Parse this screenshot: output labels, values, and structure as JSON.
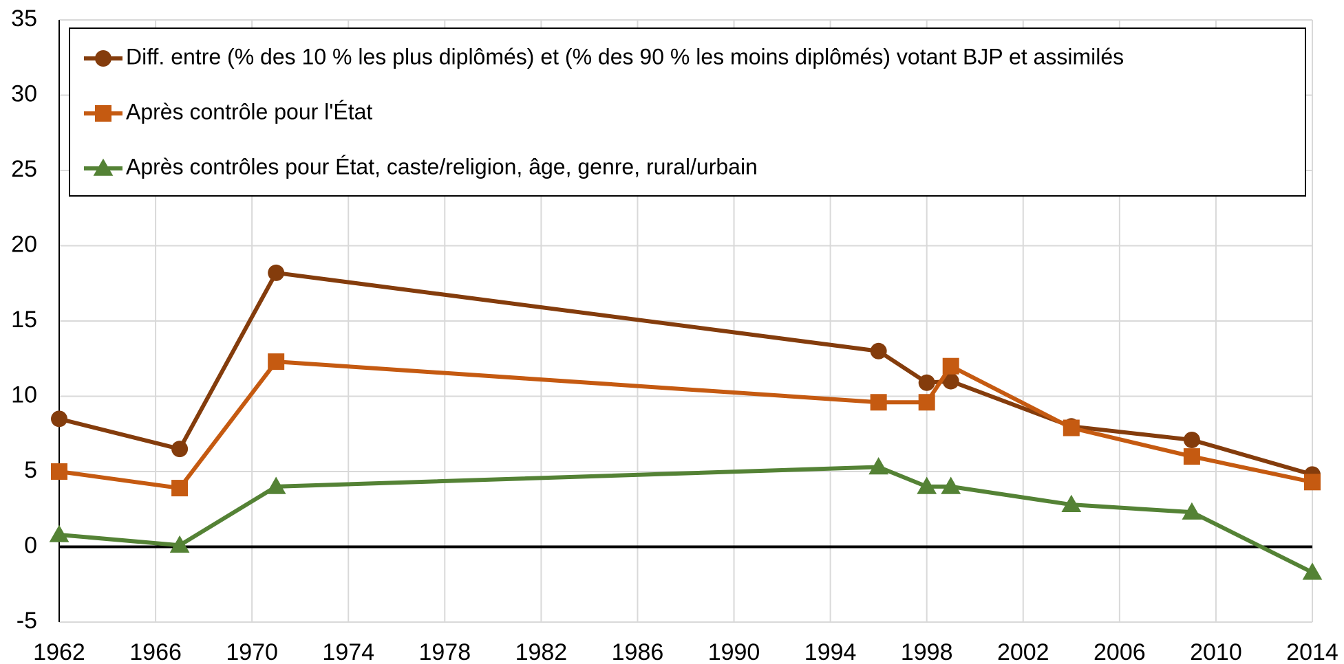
{
  "chart_data": {
    "type": "line",
    "x": [
      1962,
      1967,
      1971,
      1996,
      1998,
      1999,
      2004,
      2009,
      2014
    ],
    "series": [
      {
        "name": "Diff. entre (% des 10 % les plus diplômés) et (% des 90 % les moins diplômés) votant BJP et assimilés",
        "color": "#843c0c",
        "marker": "circle",
        "values": [
          8.5,
          6.5,
          18.2,
          13.0,
          10.9,
          11.0,
          8.0,
          7.1,
          4.8
        ]
      },
      {
        "name": "Après contrôle pour l'État",
        "color": "#c55a11",
        "marker": "square",
        "values": [
          5.0,
          3.9,
          12.3,
          9.6,
          9.6,
          12.0,
          7.9,
          6.0,
          4.3
        ]
      },
      {
        "name": "Après contrôles pour État, caste/religion, âge, genre, rural/urbain",
        "color": "#548235",
        "marker": "triangle",
        "values": [
          0.8,
          0.1,
          4.0,
          5.3,
          4.0,
          4.0,
          2.8,
          2.3,
          -1.7
        ]
      }
    ],
    "xlim": [
      1962,
      2014
    ],
    "xticks": [
      1962,
      1966,
      1970,
      1974,
      1978,
      1982,
      1986,
      1990,
      1994,
      1998,
      2002,
      2006,
      2010,
      2014
    ],
    "ylim": [
      -5,
      35
    ],
    "yticks": [
      -5,
      0,
      5,
      10,
      15,
      20,
      25,
      30,
      35
    ],
    "grid": true,
    "legend": "top"
  }
}
